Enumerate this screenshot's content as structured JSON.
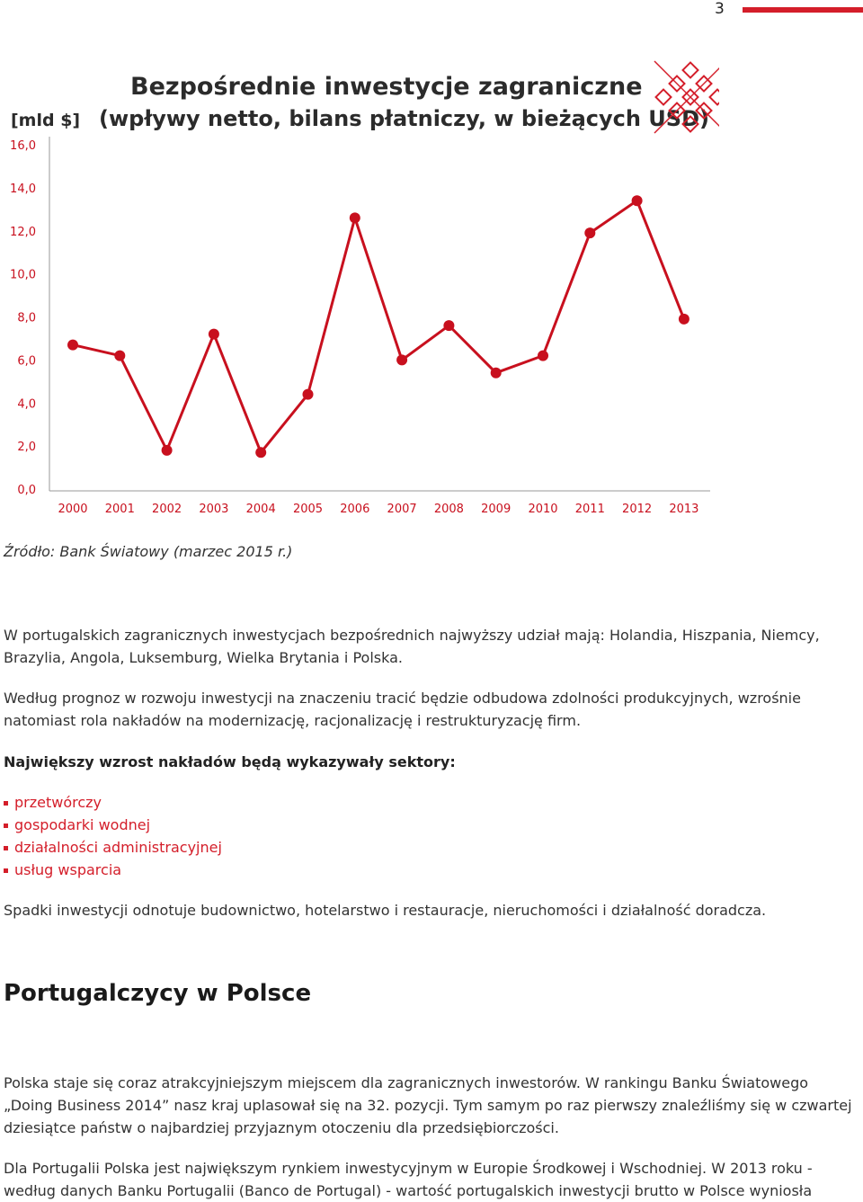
{
  "page": {
    "number": "3"
  },
  "chart_data": {
    "type": "line",
    "title": "Bezpośrednie inwestycje zagraniczne",
    "subtitle": "(wpływy netto, bilans płatniczy, w bieżących USD)",
    "ylabel": "[mld $]",
    "xlabel": "",
    "categories": [
      "2000",
      "2001",
      "2002",
      "2003",
      "2004",
      "2005",
      "2006",
      "2007",
      "2008",
      "2009",
      "2010",
      "2011",
      "2012",
      "2013"
    ],
    "values": [
      6.7,
      6.2,
      1.8,
      7.2,
      1.7,
      4.4,
      12.6,
      6.0,
      7.6,
      5.4,
      6.2,
      11.9,
      13.4,
      7.9
    ],
    "ylim": [
      0,
      16
    ],
    "y_ticks": [
      "0,0",
      "2,0",
      "4,0",
      "6,0",
      "8,0",
      "10,0",
      "12,0",
      "14,0",
      "16,0"
    ],
    "grid": false,
    "colors": {
      "line": "#c8101e",
      "axis": "#999999",
      "ticks": "#c8101e",
      "title": "#2b2b2b"
    },
    "logo_icon": "diamond-lattice-logo"
  },
  "source": "Źródło: Bank Światowy (marzec 2015 r.)",
  "paragraphs": {
    "p1": "W portugalskich zagranicznych inwestycjach bezpośrednich najwyższy udział mają: Holandia, Hiszpania, Niemcy, Brazylia, Angola, Luksemburg, Wielka Brytania i Polska.",
    "p2": "Według prognoz w rozwoju inwestycji na znaczeniu tracić będzie odbudowa zdolności produkcyjnych, wzrośnie natomiast rola nakładów na modernizację, racjonalizację i restrukturyzację firm.",
    "p3": "Największy wzrost nakładów będą wykazywały sektory:",
    "p4": "Spadki inwestycji odnotuje budownictwo, hotelarstwo i restauracje, nieruchomości i działalność doradcza.",
    "p5": "Polska staje się coraz atrakcyjniejszym miejscem dla zagranicznych inwestorów. W rankingu Banku Światowego „Doing Business 2014” nasz kraj uplasował się na 32. pozycji. Tym samym po raz pierwszy znaleźliśmy się w czwartej dziesiątce państw o najbardziej przyjaznym otoczeniu dla przedsiębiorczości.",
    "p6": "Dla Portugalii Polska jest największym rynkiem inwestycyjnym w Europie Środkowej i Wschodniej. W 2013 roku - według danych Banku Portugalii (Banco de Portugal) - wartość portugalskich inwestycji brutto w Polsce wyniosła"
  },
  "sectors": [
    "przetwórczy",
    "gospodarki wodnej",
    "działalności administracyjnej",
    "usług wsparcia"
  ],
  "section_heading": "Portugalczycy w Polsce"
}
